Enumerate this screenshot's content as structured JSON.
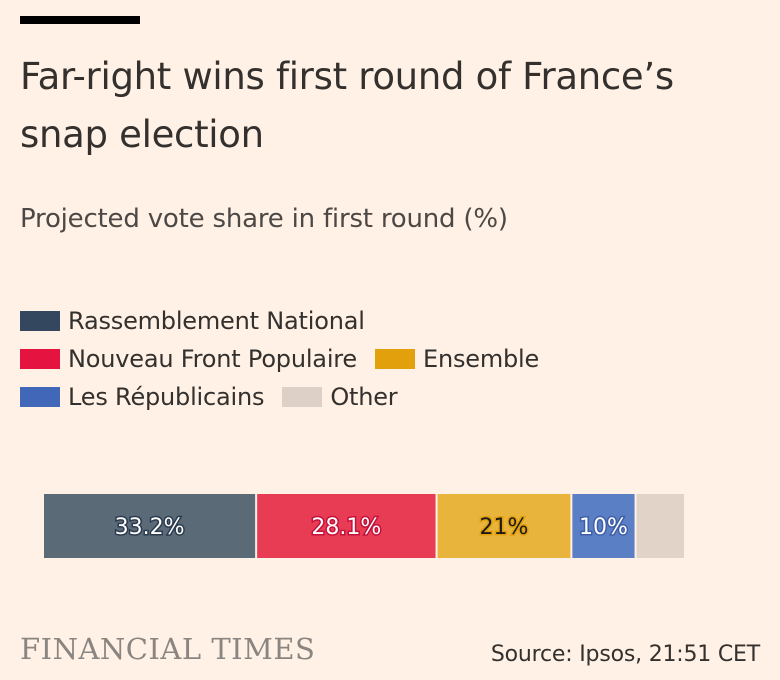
{
  "chart_data": {
    "type": "bar",
    "stacked": true,
    "orientation": "horizontal",
    "title": "Far-right wins first round of France’s snap election",
    "subtitle": "Projected vote share in first round (%)",
    "categories": [
      "Rassemblement National",
      "Nouveau Front Populaire",
      "Ensemble",
      "Les Républicains",
      "Other"
    ],
    "values": [
      33.2,
      28.1,
      21,
      10,
      7.7
    ],
    "data_labels": [
      "33.2%",
      "28.1%",
      "21%",
      "10%",
      ""
    ],
    "colors": [
      "#5b6a77",
      "#e83b54",
      "#e9b43c",
      "#5b7fc4",
      "#e2d3c8"
    ],
    "legend_colors": [
      "#33475f",
      "#e5133f",
      "#e3a00d",
      "#4167b8",
      "#ddd0c6"
    ],
    "label_colors": [
      "#ffffff",
      "#ffffff",
      "#1a1a1a",
      "#ffffff",
      "#ffffff"
    ],
    "label_halos": [
      "#2b3b4e",
      "#c4113a",
      "#e3a00d",
      "#3f5ea8",
      "#ffffff"
    ],
    "xlim": [
      0,
      100
    ],
    "legend_position": "top-left"
  },
  "legend_rows": [
    [
      0
    ],
    [
      1,
      2
    ],
    [
      3,
      4
    ]
  ],
  "footer": {
    "logo": "FINANCIAL TIMES",
    "source": "Source: Ipsos, 21:51 CET"
  }
}
